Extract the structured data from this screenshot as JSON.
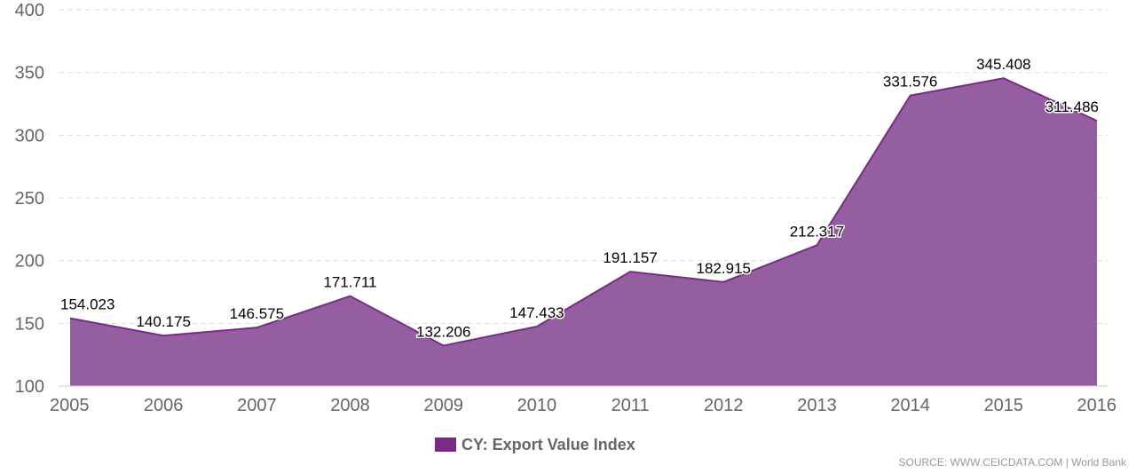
{
  "chart_data": {
    "type": "area",
    "x": [
      "2005",
      "2006",
      "2007",
      "2008",
      "2009",
      "2010",
      "2011",
      "2012",
      "2013",
      "2014",
      "2015",
      "2016"
    ],
    "series": [
      {
        "name": "CY: Export Value Index",
        "values": [
          154.023,
          140.175,
          146.575,
          171.711,
          132.206,
          147.433,
          191.157,
          182.915,
          212.317,
          331.576,
          345.408,
          311.486
        ],
        "labels": [
          "154.023",
          "140.175",
          "146.575",
          "171.711",
          "132.206",
          "147.433",
          "191.157",
          "182.915",
          "212.317",
          "331.576",
          "345.408",
          "311.486"
        ],
        "color": "#7b2b87"
      }
    ],
    "ylim": [
      100,
      400
    ],
    "yticks": [
      "100",
      "150",
      "200",
      "250",
      "300",
      "350",
      "400"
    ],
    "grid": true,
    "legend": "bottom-center",
    "fill_color": "#955ea0",
    "line_color": "#7b2b87"
  },
  "legend": {
    "label": "CY: Export Value Index",
    "color": "#7b2b87"
  },
  "source": "SOURCE: WWW.CEICDATA.COM | World Bank"
}
